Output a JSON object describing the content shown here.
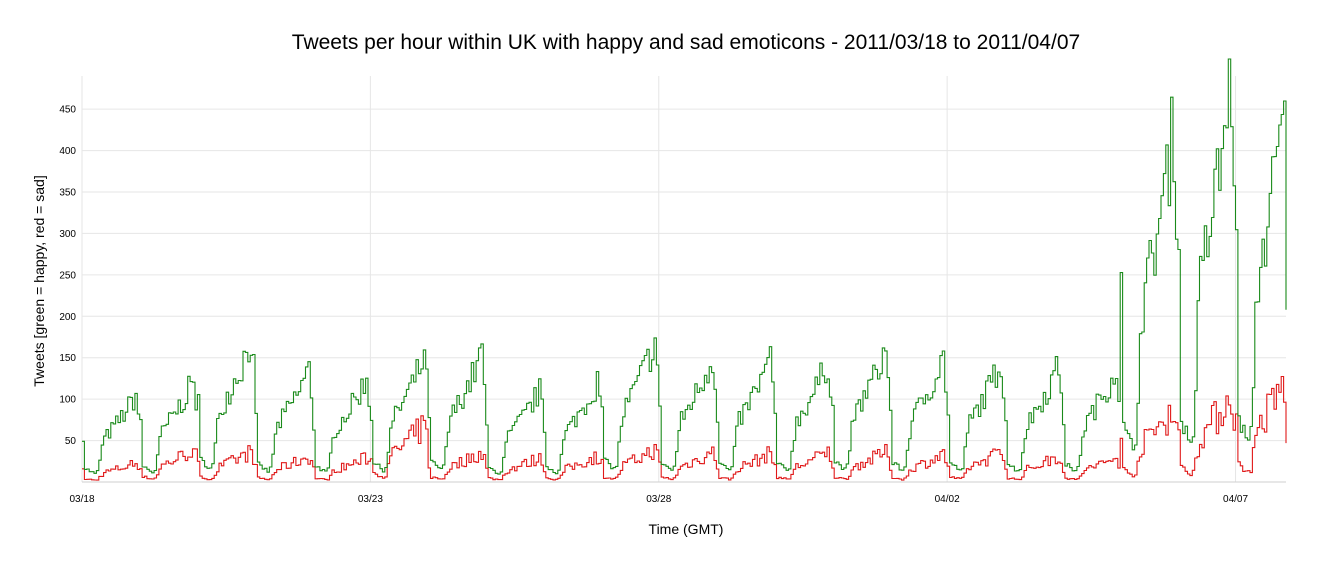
{
  "chart_data": {
    "type": "line",
    "style": "step",
    "title": "Tweets per hour within UK with happy and sad emoticons - 2011/03/18 to 2011/04/07",
    "xlabel": "Time (GMT)",
    "ylabel": "Tweets [green = happy, red = sad]",
    "ylim": [
      0,
      490
    ],
    "yticks": [
      50,
      100,
      150,
      200,
      250,
      300,
      350,
      400,
      450
    ],
    "xlim": [
      "2011-03-18",
      "2011-04-07T21:00"
    ],
    "xticks": [
      {
        "x": "2011-03-18",
        "label": "03/18"
      },
      {
        "x": "2011-03-23",
        "label": "03/23"
      },
      {
        "x": "2011-03-28",
        "label": "03/28"
      },
      {
        "x": "2011-04-02",
        "label": "04/02"
      },
      {
        "x": "2011-04-07",
        "label": "04/07"
      }
    ],
    "grid": true,
    "colors": {
      "happy": "#1a8a1a",
      "sad": "#e01818"
    },
    "daily_peaks": [
      {
        "day": "03/18",
        "happy": 105,
        "sad": 22
      },
      {
        "day": "03/19",
        "happy": 122,
        "sad": 38
      },
      {
        "day": "03/20",
        "happy": 172,
        "sad": 35
      },
      {
        "day": "03/21",
        "happy": 135,
        "sad": 30
      },
      {
        "day": "03/22",
        "happy": 125,
        "sad": 28
      },
      {
        "day": "03/23",
        "happy": 150,
        "sad": 65
      },
      {
        "day": "03/24",
        "happy": 155,
        "sad": 35
      },
      {
        "day": "03/25",
        "happy": 110,
        "sad": 28
      },
      {
        "day": "03/26",
        "happy": 120,
        "sad": 30
      },
      {
        "day": "03/27",
        "happy": 170,
        "sad": 38
      },
      {
        "day": "03/28",
        "happy": 150,
        "sad": 35
      },
      {
        "day": "03/29",
        "happy": 148,
        "sad": 33
      },
      {
        "day": "03/30",
        "happy": 145,
        "sad": 35
      },
      {
        "day": "03/31",
        "happy": 160,
        "sad": 35
      },
      {
        "day": "04/01",
        "happy": 150,
        "sad": 32
      },
      {
        "day": "04/02",
        "happy": 145,
        "sad": 35
      },
      {
        "day": "04/03",
        "happy": 140,
        "sad": 30
      },
      {
        "day": "04/04",
        "happy": 138,
        "sad": 28
      },
      {
        "day": "04/05",
        "happy": 425,
        "sad": 88
      },
      {
        "day": "04/06",
        "happy": 485,
        "sad": 102
      },
      {
        "day": "04/07",
        "happy": 492,
        "sad": 125
      }
    ],
    "final_values": {
      "happy": 208,
      "sad": 47
    }
  }
}
